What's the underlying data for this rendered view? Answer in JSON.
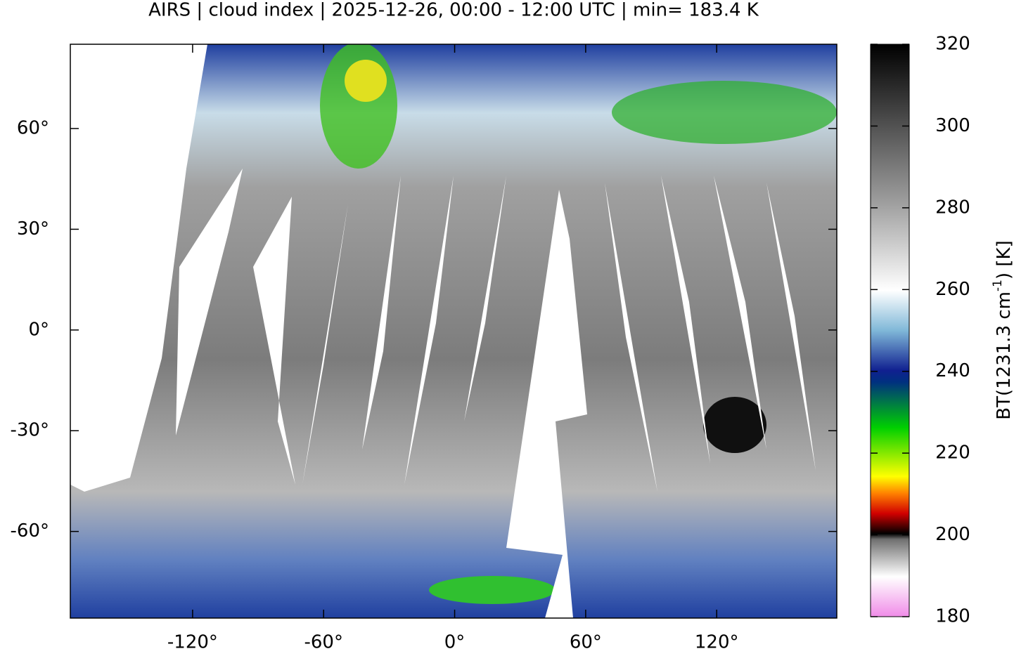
{
  "chart_data": {
    "type": "map",
    "title": "AIRS | cloud index | 2025-12-26, 00:00 - 12:00 UTC | min= 183.4 K",
    "xlim": [
      -176,
      175
    ],
    "ylim": [
      -85.8,
      85.1
    ],
    "xticks": [
      {
        "value": -120,
        "label": "-120°"
      },
      {
        "value": -60,
        "label": "-60°"
      },
      {
        "value": 0,
        "label": "0°"
      },
      {
        "value": 60,
        "label": "60°"
      },
      {
        "value": 120,
        "label": "120°"
      }
    ],
    "yticks": [
      {
        "value": -60,
        "label": "-60°"
      },
      {
        "value": -30,
        "label": "-30°"
      },
      {
        "value": 0,
        "label": "0°"
      },
      {
        "value": 30,
        "label": "30°"
      },
      {
        "value": 60,
        "label": "60°"
      }
    ],
    "colorbar": {
      "lim": [
        180,
        320
      ],
      "ticks": [
        180,
        200,
        220,
        240,
        260,
        280,
        300,
        320
      ],
      "label": {
        "base": "BT(1231.3 cm",
        "sup": "-1",
        "rest": ") [K]"
      }
    }
  }
}
